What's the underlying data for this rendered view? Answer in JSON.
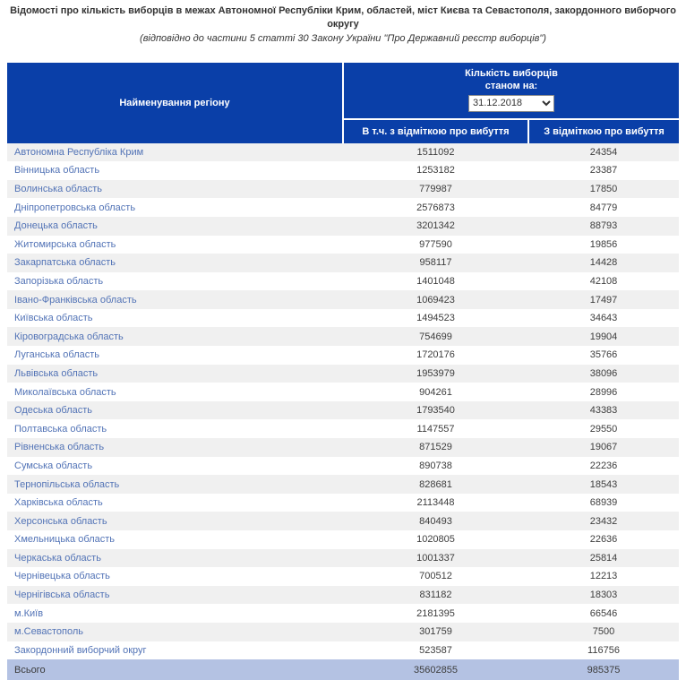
{
  "title": "Відомості про кількість виборців в межах Автономної Республіки Крим, областей, міст Києва та Севастополя, закордонного виборчого округу",
  "subtitle": "(відповідно до частини 5 статті 30 Закону України \"Про Державний реєстр виборців\")",
  "table": {
    "region_header": "Найменування регіону",
    "count_header_line1": "Кількість виборців",
    "count_header_line2": "станом на:",
    "date_selected": "31.12.2018",
    "col2_header": "В т.ч. з відміткою про вибуття",
    "col3_header": "З відміткою про вибуття",
    "rows": [
      {
        "region": "Автономна Республіка Крим",
        "total": "1511092",
        "departed": "24354"
      },
      {
        "region": "Вінницька область",
        "total": "1253182",
        "departed": "23387"
      },
      {
        "region": "Волинська область",
        "total": "779987",
        "departed": "17850"
      },
      {
        "region": "Дніпропетровська область",
        "total": "2576873",
        "departed": "84779"
      },
      {
        "region": "Донецька область",
        "total": "3201342",
        "departed": "88793"
      },
      {
        "region": "Житомирська область",
        "total": "977590",
        "departed": "19856"
      },
      {
        "region": "Закарпатська область",
        "total": "958117",
        "departed": "14428"
      },
      {
        "region": "Запорізька область",
        "total": "1401048",
        "departed": "42108"
      },
      {
        "region": "Івано-Франківська область",
        "total": "1069423",
        "departed": "17497"
      },
      {
        "region": "Київська область",
        "total": "1494523",
        "departed": "34643"
      },
      {
        "region": "Кіровоградська область",
        "total": "754699",
        "departed": "19904"
      },
      {
        "region": "Луганська область",
        "total": "1720176",
        "departed": "35766"
      },
      {
        "region": "Львівська область",
        "total": "1953979",
        "departed": "38096"
      },
      {
        "region": "Миколаївська область",
        "total": "904261",
        "departed": "28996"
      },
      {
        "region": "Одеська область",
        "total": "1793540",
        "departed": "43383"
      },
      {
        "region": "Полтавська область",
        "total": "1147557",
        "departed": "29550"
      },
      {
        "region": "Рівненська область",
        "total": "871529",
        "departed": "19067"
      },
      {
        "region": "Сумська область",
        "total": "890738",
        "departed": "22236"
      },
      {
        "region": "Тернопільська область",
        "total": "828681",
        "departed": "18543"
      },
      {
        "region": "Харківська область",
        "total": "2113448",
        "departed": "68939"
      },
      {
        "region": "Херсонська область",
        "total": "840493",
        "departed": "23432"
      },
      {
        "region": "Хмельницька область",
        "total": "1020805",
        "departed": "22636"
      },
      {
        "region": "Черкаська область",
        "total": "1001337",
        "departed": "25814"
      },
      {
        "region": "Чернівецька область",
        "total": "700512",
        "departed": "12213"
      },
      {
        "region": "Чернігівська область",
        "total": "831182",
        "departed": "18303"
      },
      {
        "region": "м.Київ",
        "total": "2181395",
        "departed": "66546"
      },
      {
        "region": "м.Севастополь",
        "total": "301759",
        "departed": "7500"
      },
      {
        "region": "Закордонний виборчий округ",
        "total": "523587",
        "departed": "116756"
      }
    ],
    "total_row": {
      "label": "Всього",
      "total": "35602855",
      "departed": "985375"
    }
  },
  "colors": {
    "header_blue": "#0a3fa8",
    "stripe_grey": "#f0f0f0",
    "total_bg": "#b4c2e3",
    "link_blue": "#5273b6",
    "num_grey": "#3d3d3d",
    "title_grey": "#333333"
  }
}
